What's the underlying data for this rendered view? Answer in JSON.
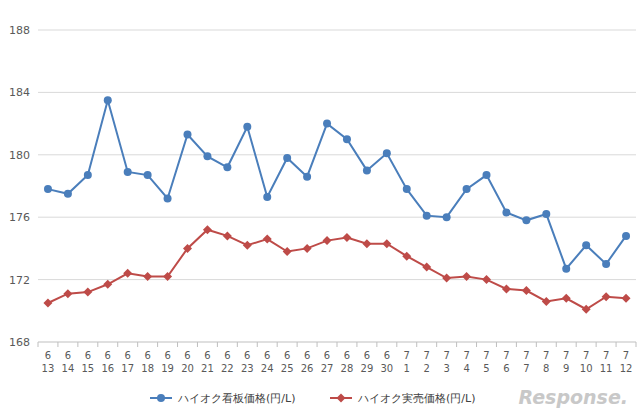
{
  "chart_data": {
    "type": "line",
    "categories": [
      "6\n13",
      "6\n14",
      "6\n15",
      "6\n16",
      "6\n17",
      "6\n18",
      "6\n19",
      "6\n20",
      "6\n21",
      "6\n22",
      "6\n23",
      "6\n24",
      "6\n25",
      "6\n26",
      "6\n27",
      "6\n28",
      "6\n29",
      "6\n30",
      "7\n1",
      "7\n2",
      "7\n3",
      "7\n4",
      "7\n5",
      "7\n6",
      "7\n7",
      "7\n8",
      "7\n9",
      "7\n10",
      "7\n11",
      "7\n12"
    ],
    "series": [
      {
        "name": "ハイオク看板価格(円/L)",
        "color": "#4a7ebb",
        "marker": "circle",
        "line_style": "solid",
        "values": [
          177.8,
          177.5,
          178.7,
          183.5,
          178.9,
          178.7,
          177.2,
          181.3,
          179.9,
          179.2,
          181.8,
          177.3,
          179.8,
          178.6,
          182.0,
          181.0,
          179.0,
          180.1,
          177.8,
          176.1,
          176.0,
          177.8,
          178.7,
          176.3,
          175.8,
          176.2,
          172.7,
          174.2,
          173.0,
          174.8
        ]
      },
      {
        "name": "ハイオク実売価格(円/L)",
        "color": "#be4b48",
        "marker": "diamond",
        "line_style": "solid",
        "values": [
          170.5,
          171.1,
          171.2,
          171.7,
          172.4,
          172.2,
          172.2,
          174.0,
          175.2,
          174.8,
          174.2,
          174.6,
          173.8,
          174.0,
          174.5,
          174.7,
          174.3,
          174.3,
          173.5,
          172.8,
          172.1,
          172.2,
          172.0,
          171.4,
          171.3,
          170.6,
          170.8,
          170.1,
          170.9,
          170.8
        ]
      }
    ],
    "ylim": [
      168,
      188
    ],
    "yticks": [
      168,
      172,
      176,
      180,
      184,
      188
    ],
    "grid": true,
    "legend": "bottom",
    "annotations": [
      "Response."
    ]
  }
}
